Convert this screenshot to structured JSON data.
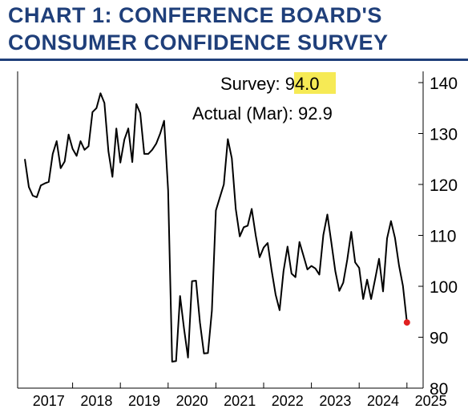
{
  "title_lines": [
    "CHART 1: CONFERENCE BOARD'S",
    "CONSUMER CONFIDENCE SURVEY"
  ],
  "annotation": {
    "survey_label": "Survey: ",
    "survey_value": "94.0",
    "survey_highlight": "#f6ea55",
    "actual_label": "Actual (Mar): ",
    "actual_value": "92.9"
  },
  "colors": {
    "title": "#1f3f7a",
    "line": "#000000",
    "marker": "#e02020"
  },
  "chart_data": {
    "type": "line",
    "title": "CHART 1: CONFERENCE BOARD'S CONSUMER CONFIDENCE SURVEY",
    "xlabel": "",
    "ylabel": "",
    "ylim": [
      80,
      140
    ],
    "yticks": [
      80,
      90,
      100,
      110,
      120,
      130,
      140
    ],
    "xticks": [
      "2017",
      "2018",
      "2019",
      "2020",
      "2021",
      "2022",
      "2023",
      "2024",
      "2025"
    ],
    "grid": false,
    "series": [
      {
        "values": [
          {
            "x": "2017-01",
            "y": 125.0
          },
          {
            "x": "2017-02",
            "y": 119.5
          },
          {
            "x": "2017-03",
            "y": 117.8
          },
          {
            "x": "2017-04",
            "y": 117.5
          },
          {
            "x": "2017-05",
            "y": 119.8
          },
          {
            "x": "2017-06",
            "y": 120.2
          },
          {
            "x": "2017-07",
            "y": 120.5
          },
          {
            "x": "2017-08",
            "y": 126.0
          },
          {
            "x": "2017-09",
            "y": 128.5
          },
          {
            "x": "2017-10",
            "y": 123.2
          },
          {
            "x": "2017-11",
            "y": 124.5
          },
          {
            "x": "2017-12",
            "y": 129.8
          },
          {
            "x": "2018-01",
            "y": 127.0
          },
          {
            "x": "2018-02",
            "y": 125.6
          },
          {
            "x": "2018-03",
            "y": 128.5
          },
          {
            "x": "2018-04",
            "y": 126.8
          },
          {
            "x": "2018-05",
            "y": 127.5
          },
          {
            "x": "2018-06",
            "y": 134.2
          },
          {
            "x": "2018-07",
            "y": 135.0
          },
          {
            "x": "2018-08",
            "y": 137.9
          },
          {
            "x": "2018-09",
            "y": 136.0
          },
          {
            "x": "2018-10",
            "y": 126.5
          },
          {
            "x": "2018-11",
            "y": 121.5
          },
          {
            "x": "2018-12",
            "y": 131.0
          },
          {
            "x": "2019-01",
            "y": 124.3
          },
          {
            "x": "2019-02",
            "y": 128.8
          },
          {
            "x": "2019-03",
            "y": 131.0
          },
          {
            "x": "2019-04",
            "y": 124.4
          },
          {
            "x": "2019-05",
            "y": 135.8
          },
          {
            "x": "2019-06",
            "y": 134.0
          },
          {
            "x": "2019-07",
            "y": 126.0
          },
          {
            "x": "2019-08",
            "y": 126.0
          },
          {
            "x": "2019-09",
            "y": 126.8
          },
          {
            "x": "2019-10",
            "y": 128.0
          },
          {
            "x": "2019-11",
            "y": 130.0
          },
          {
            "x": "2019-12",
            "y": 132.5
          },
          {
            "x": "2020-01",
            "y": 118.8
          },
          {
            "x": "2020-02",
            "y": 85.2
          },
          {
            "x": "2020-03",
            "y": 85.3
          },
          {
            "x": "2020-04",
            "y": 98.1
          },
          {
            "x": "2020-05",
            "y": 91.6
          },
          {
            "x": "2020-06",
            "y": 86.0
          },
          {
            "x": "2020-07",
            "y": 101.0
          },
          {
            "x": "2020-08",
            "y": 101.1
          },
          {
            "x": "2020-09",
            "y": 92.9
          },
          {
            "x": "2020-10",
            "y": 86.8
          },
          {
            "x": "2020-11",
            "y": 86.9
          },
          {
            "x": "2020-12",
            "y": 95.2
          },
          {
            "x": "2021-01",
            "y": 114.9
          },
          {
            "x": "2021-02",
            "y": 117.5
          },
          {
            "x": "2021-03",
            "y": 120.0
          },
          {
            "x": "2021-04",
            "y": 128.9
          },
          {
            "x": "2021-05",
            "y": 125.1
          },
          {
            "x": "2021-06",
            "y": 115.2
          },
          {
            "x": "2021-07",
            "y": 109.8
          },
          {
            "x": "2021-08",
            "y": 111.6
          },
          {
            "x": "2021-09",
            "y": 111.9
          },
          {
            "x": "2021-10",
            "y": 115.2
          },
          {
            "x": "2021-11",
            "y": 110.0
          },
          {
            "x": "2021-12",
            "y": 105.7
          },
          {
            "x": "2022-01",
            "y": 107.6
          },
          {
            "x": "2022-02",
            "y": 108.5
          },
          {
            "x": "2022-03",
            "y": 103.2
          },
          {
            "x": "2022-04",
            "y": 98.4
          },
          {
            "x": "2022-05",
            "y": 95.3
          },
          {
            "x": "2022-06",
            "y": 103.0
          },
          {
            "x": "2022-07",
            "y": 107.8
          },
          {
            "x": "2022-08",
            "y": 102.5
          },
          {
            "x": "2022-09",
            "y": 101.8
          },
          {
            "x": "2022-10",
            "y": 108.7
          },
          {
            "x": "2022-11",
            "y": 106.0
          },
          {
            "x": "2022-12",
            "y": 103.3
          },
          {
            "x": "2023-01",
            "y": 104.0
          },
          {
            "x": "2023-02",
            "y": 103.5
          },
          {
            "x": "2023-03",
            "y": 102.3
          },
          {
            "x": "2023-04",
            "y": 110.1
          },
          {
            "x": "2023-05",
            "y": 114.1
          },
          {
            "x": "2023-06",
            "y": 108.7
          },
          {
            "x": "2023-07",
            "y": 103.0
          },
          {
            "x": "2023-08",
            "y": 99.1
          },
          {
            "x": "2023-09",
            "y": 100.7
          },
          {
            "x": "2023-10",
            "y": 105.2
          },
          {
            "x": "2023-11",
            "y": 110.7
          },
          {
            "x": "2023-12",
            "y": 104.7
          },
          {
            "x": "2024-01",
            "y": 103.6
          },
          {
            "x": "2024-02",
            "y": 97.5
          },
          {
            "x": "2024-03",
            "y": 101.3
          },
          {
            "x": "2024-04",
            "y": 97.5
          },
          {
            "x": "2024-05",
            "y": 101.4
          },
          {
            "x": "2024-06",
            "y": 105.4
          },
          {
            "x": "2024-07",
            "y": 99.0
          },
          {
            "x": "2024-08",
            "y": 109.4
          },
          {
            "x": "2024-09",
            "y": 112.8
          },
          {
            "x": "2024-10",
            "y": 109.5
          },
          {
            "x": "2024-11",
            "y": 104.1
          },
          {
            "x": "2024-12",
            "y": 100.1
          },
          {
            "x": "2025-01",
            "y": 92.9
          }
        ]
      }
    ],
    "marker": {
      "x": "2025-01",
      "y": 92.9
    }
  }
}
